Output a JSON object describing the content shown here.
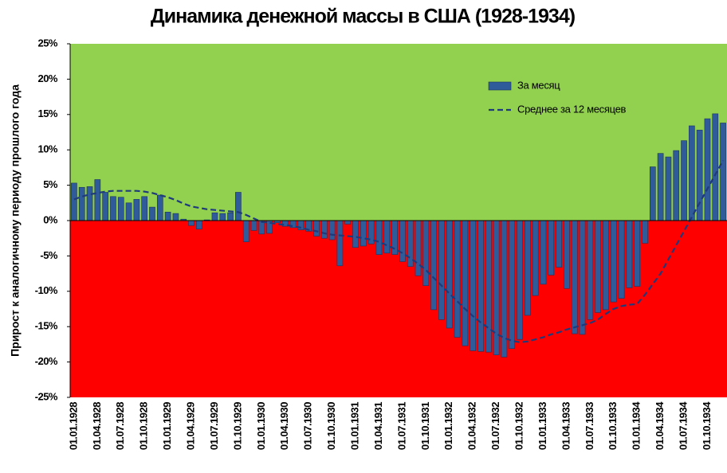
{
  "chart_data": {
    "type": "bar",
    "title": "Динамика денежной массы в США (1928-1934)",
    "y_label": "Прирост к аналогичному периоду прошлого года",
    "categories": [
      "01.01.1928",
      null,
      null,
      "01.04.1928",
      null,
      null,
      "01.07.1928",
      null,
      null,
      "01.10.1928",
      null,
      null,
      "01.01.1929",
      null,
      null,
      "01.04.1929",
      null,
      null,
      "01.07.1929",
      null,
      null,
      "01.10.1929",
      null,
      null,
      "01.01.1930",
      null,
      null,
      "01.04.1930",
      null,
      null,
      "01.07.1930",
      null,
      null,
      "01.10.1930",
      null,
      null,
      "01.01.1931",
      null,
      null,
      "01.04.1931",
      null,
      null,
      "01.07.1931",
      null,
      null,
      "01.10.1931",
      null,
      null,
      "01.01.1932",
      null,
      null,
      "01.04.1932",
      null,
      null,
      "01.07.1932",
      null,
      null,
      "01.10.1932",
      null,
      null,
      "01.01.1933",
      null,
      null,
      "01.04.1933",
      null,
      null,
      "01.07.1933",
      null,
      null,
      "01.10.1933",
      null,
      null,
      "01.01.1934",
      null,
      null,
      "01.04.1934",
      null,
      null,
      "01.07.1934",
      null,
      null,
      "01.10.1934",
      null,
      null
    ],
    "series": [
      {
        "name": "За месяц",
        "color": "#2f5b9a",
        "values": [
          5.3,
          4.7,
          4.8,
          5.8,
          4.0,
          3.4,
          3.3,
          2.5,
          3.0,
          3.4,
          1.9,
          3.6,
          1.2,
          1.0,
          0.2,
          -0.7,
          -1.2,
          0.1,
          1.1,
          1.0,
          1.1,
          4.0,
          -3.0,
          -1.4,
          -1.9,
          -1.8,
          -0.3,
          -0.8,
          -1.0,
          -1.3,
          -1.5,
          -2.2,
          -2.5,
          -2.7,
          -6.4,
          -0.5,
          -3.8,
          -3.6,
          -3.3,
          -4.8,
          -4.6,
          -4.8,
          -5.8,
          -6.5,
          -7.8,
          -9.2,
          -12.6,
          -14.0,
          -15.2,
          -16.5,
          -17.7,
          -18.4,
          -18.5,
          -18.6,
          -19.0,
          -19.3,
          -18.1,
          -16.8,
          -13.4,
          -10.6,
          -9.0,
          -7.7,
          -6.6,
          -9.6,
          -16.0,
          -16.1,
          -14.0,
          -13.0,
          -12.6,
          -11.5,
          -11.0,
          -9.5,
          -9.3,
          -3.2,
          7.6,
          9.5,
          9.0,
          9.9,
          11.3,
          13.4,
          12.8,
          14.4,
          15.1,
          13.8
        ]
      },
      {
        "name": "Среднее за 12 месяцев",
        "color": "#1f3a7a",
        "type": "line",
        "dashed": true,
        "values": [
          3.0,
          3.4,
          3.7,
          3.9,
          4.1,
          4.2,
          4.2,
          4.2,
          4.2,
          4.1,
          3.9,
          3.6,
          3.3,
          2.9,
          2.4,
          2.0,
          1.8,
          1.6,
          1.5,
          1.4,
          1.3,
          1.2,
          0.8,
          0.3,
          -0.2,
          -0.3,
          -0.5,
          -0.6,
          -0.8,
          -1.0,
          -1.3,
          -1.5,
          -1.8,
          -2.0,
          -2.1,
          -2.2,
          -2.3,
          -2.5,
          -2.7,
          -3.0,
          -3.5,
          -4.0,
          -4.6,
          -5.3,
          -6.1,
          -7.0,
          -8.1,
          -9.2,
          -10.3,
          -11.4,
          -12.5,
          -13.5,
          -14.4,
          -15.2,
          -16.0,
          -16.6,
          -17.0,
          -17.2,
          -17.1,
          -16.8,
          -16.5,
          -16.1,
          -15.8,
          -15.4,
          -15.1,
          -14.8,
          -14.5,
          -14.0,
          -13.2,
          -12.5,
          -12.1,
          -11.9,
          -11.8,
          -10.5,
          -9.0,
          -7.5,
          -5.5,
          -3.5,
          -1.5,
          0.5,
          2.5,
          4.5,
          6.5,
          8.5
        ]
      }
    ],
    "ylim": [
      -25,
      25
    ],
    "yticks": [
      {
        "value": -25,
        "label": "-25%"
      },
      {
        "value": -20,
        "label": "-20%"
      },
      {
        "value": -15,
        "label": "-15%"
      },
      {
        "value": -10,
        "label": "-10%"
      },
      {
        "value": -5,
        "label": "-5%"
      },
      {
        "value": 0,
        "label": "0%"
      },
      {
        "value": 5,
        "label": "5%"
      },
      {
        "value": 10,
        "label": "10%"
      },
      {
        "value": 15,
        "label": "15%"
      },
      {
        "value": 20,
        "label": "20%"
      },
      {
        "value": 25,
        "label": "25%"
      }
    ],
    "background_above_zero": "#92d050",
    "background_below_zero": "#ff0000",
    "legend": "upper right"
  }
}
